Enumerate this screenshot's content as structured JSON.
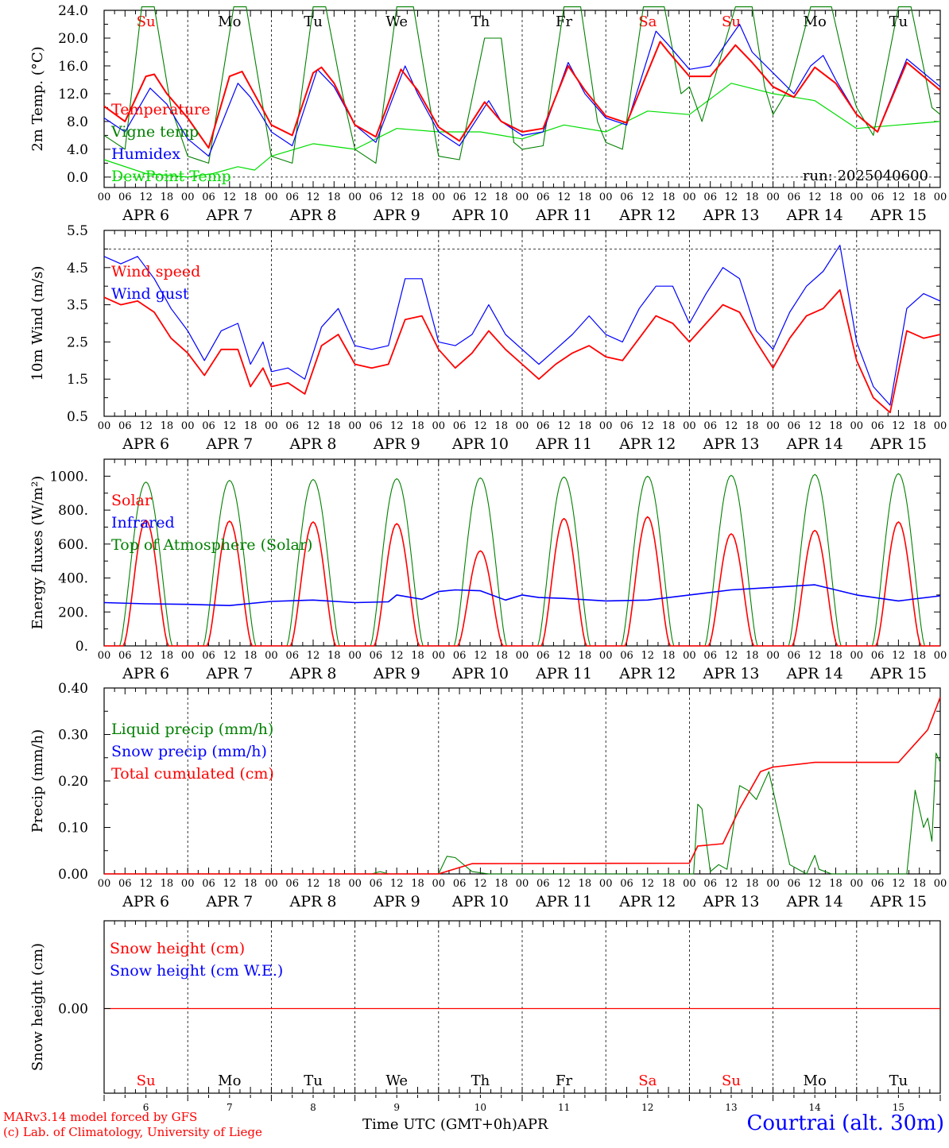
{
  "footer": {
    "model": "MARv3.14 model forced by GFS",
    "credit": "(c) Lab. of Climatology, University of Liege",
    "station": "Courtrai (alt. 30m)",
    "time_axis": "Time UTC (GMT+0h)",
    "month": "APR"
  },
  "colors": {
    "red": "#ff0000",
    "green": "#008000",
    "blue": "#0000ff",
    "lightgreen": "#00dd00",
    "black": "#000000"
  },
  "axis": {
    "hour_ticks": [
      "00",
      "06",
      "12",
      "18"
    ],
    "last_hour": "00",
    "date_labels": [
      "APR  6",
      "APR  7",
      "APR  8",
      "APR  9",
      "APR 10",
      "APR 11",
      "APR 12",
      "APR 13",
      "APR 14",
      "APR 15"
    ]
  },
  "weekdays": [
    {
      "label": "Su",
      "weekend": true
    },
    {
      "label": "Mo",
      "weekend": false
    },
    {
      "label": "Tu",
      "weekend": false
    },
    {
      "label": "We",
      "weekend": false
    },
    {
      "label": "Th",
      "weekend": false
    },
    {
      "label": "Fr",
      "weekend": false
    },
    {
      "label": "Sa",
      "weekend": true
    },
    {
      "label": "Su",
      "weekend": true
    },
    {
      "label": "Mo",
      "weekend": false
    },
    {
      "label": "Tu",
      "weekend": false
    }
  ],
  "day_numbers": [
    "6",
    "7",
    "8",
    "9",
    "10",
    "11",
    "12",
    "13",
    "14",
    "15"
  ],
  "chart_data": [
    {
      "type": "line",
      "ylabel": "2m Temp. (°C)",
      "ylim": [
        -1.5,
        24.0
      ],
      "yticks": [
        "24.0",
        "20.0",
        "16.0",
        "12.0",
        "8.0",
        "4.0",
        "0.0"
      ],
      "ytick_values": [
        24,
        20,
        16,
        12,
        8,
        4,
        0
      ],
      "dashed_ref": 0,
      "annotation": "run: 2025040600",
      "legend": [
        {
          "label": "Temperature",
          "color": "red"
        },
        {
          "label": "Vigne temp",
          "color": "green"
        },
        {
          "label": "Humidex",
          "color": "blue"
        },
        {
          "label": "DewPoint Temp",
          "color": "lightgreen"
        }
      ],
      "series": [
        {
          "name": "Temperature",
          "color": "red",
          "x": [
            0,
            0.25,
            0.5,
            0.6,
            0.75,
            1,
            1.25,
            1.5,
            1.65,
            1.75,
            2,
            2.25,
            2.5,
            2.6,
            2.75,
            3,
            3.25,
            3.55,
            3.75,
            4,
            4.25,
            4.55,
            4.75,
            5,
            5.25,
            5.55,
            5.75,
            6,
            6.25,
            6.65,
            6.75,
            7,
            7.25,
            7.55,
            7.75,
            8,
            8.25,
            8.5,
            8.75,
            9,
            9.25,
            9.6,
            10
          ],
          "values": [
            10.2,
            8,
            14.5,
            14.8,
            12,
            8.5,
            4.2,
            14.5,
            15.2,
            13,
            7.5,
            6,
            15,
            15.8,
            13.5,
            7.5,
            5.8,
            15.5,
            12.5,
            7.2,
            5.2,
            10.8,
            8,
            6.5,
            7,
            16,
            12.5,
            8.8,
            7.8,
            19.5,
            18,
            14.5,
            14.5,
            19,
            16.5,
            13,
            11.5,
            15.8,
            13.5,
            9,
            6.5,
            16.5,
            12.5
          ]
        },
        {
          "name": "Vigne temp",
          "color": "green",
          "x": [
            0,
            0.25,
            0.45,
            0.6,
            0.8,
            1,
            1.25,
            1.55,
            1.7,
            1.9,
            2,
            2.25,
            2.5,
            2.65,
            2.85,
            3,
            3.25,
            3.5,
            3.7,
            3.9,
            4,
            4.25,
            4.55,
            4.75,
            4.9,
            5,
            5.25,
            5.5,
            5.7,
            5.9,
            6,
            6.2,
            6.45,
            6.7,
            6.9,
            7,
            7.15,
            7.55,
            7.75,
            7.9,
            8,
            8.2,
            8.45,
            8.7,
            8.9,
            9,
            9.2,
            9.5,
            9.65,
            9.9,
            10
          ],
          "values": [
            6,
            4,
            24.5,
            24.5,
            10,
            3,
            2,
            24.5,
            24.5,
            10,
            3,
            2,
            24.5,
            24.5,
            12,
            4,
            2,
            24.5,
            24.5,
            10,
            3,
            2.5,
            20,
            20,
            5,
            4,
            4.5,
            24.5,
            24.5,
            8,
            5,
            4,
            24.5,
            24.5,
            12,
            13,
            8,
            24.5,
            24.5,
            13,
            9,
            13,
            24.5,
            24.5,
            14,
            10,
            6,
            24.5,
            24.5,
            10,
            9
          ]
        },
        {
          "name": "Humidex",
          "color": "blue",
          "x": [
            0,
            0.25,
            0.55,
            0.75,
            1,
            1.25,
            1.6,
            1.75,
            2,
            2.25,
            2.55,
            2.75,
            3,
            3.25,
            3.6,
            3.75,
            4,
            4.25,
            4.6,
            4.75,
            5,
            5.25,
            5.55,
            5.75,
            6,
            6.25,
            6.6,
            6.75,
            7,
            7.25,
            7.6,
            7.75,
            8,
            8.25,
            8.45,
            8.6,
            8.75,
            9,
            9.25,
            9.6,
            10
          ],
          "values": [
            8.5,
            6.5,
            12.8,
            10.5,
            5.5,
            3,
            13.5,
            11.5,
            6.5,
            4.5,
            15.5,
            13,
            7.5,
            5,
            16,
            12,
            6.5,
            4.5,
            11,
            8,
            6,
            6.5,
            16.5,
            12,
            8.5,
            7.5,
            21,
            19,
            15.5,
            16,
            22,
            18,
            15,
            12,
            16,
            17.5,
            14,
            9,
            6.5,
            17,
            13
          ]
        },
        {
          "name": "DewPoint Temp",
          "color": "lightgreen",
          "x": [
            0,
            0.5,
            1,
            1.3,
            1.6,
            1.8,
            2,
            2.5,
            3,
            3.5,
            4,
            4.5,
            5,
            5.5,
            6,
            6.5,
            7,
            7.5,
            8,
            8.5,
            9,
            9.5,
            10
          ],
          "values": [
            2.5,
            0.5,
            0,
            0.5,
            1.5,
            1,
            3,
            4.8,
            4,
            7,
            6.5,
            6.5,
            5.5,
            7.5,
            6.5,
            9.5,
            9,
            13.5,
            12,
            11,
            7,
            7.5,
            8
          ]
        }
      ]
    },
    {
      "type": "line",
      "ylabel": "10m Wind (m/s)",
      "ylim": [
        0.5,
        5.5
      ],
      "yticks": [
        "5.5",
        "4.5",
        "3.5",
        "2.5",
        "1.5",
        "0.5"
      ],
      "ytick_values": [
        5.5,
        4.5,
        3.5,
        2.5,
        1.5,
        0.5
      ],
      "dashed_ref": 5.0,
      "legend": [
        {
          "label": "Wind speed",
          "color": "red"
        },
        {
          "label": "Wind gust",
          "color": "blue"
        }
      ],
      "series": [
        {
          "name": "Wind speed",
          "color": "red",
          "x": [
            0,
            0.2,
            0.4,
            0.6,
            0.8,
            1,
            1.2,
            1.4,
            1.6,
            1.75,
            1.9,
            2,
            2.2,
            2.4,
            2.6,
            2.8,
            3,
            3.2,
            3.4,
            3.6,
            3.8,
            4,
            4.2,
            4.4,
            4.6,
            4.8,
            5,
            5.2,
            5.4,
            5.6,
            5.8,
            6,
            6.2,
            6.4,
            6.6,
            6.8,
            7,
            7.2,
            7.4,
            7.6,
            7.8,
            8,
            8.2,
            8.4,
            8.6,
            8.8,
            9,
            9.2,
            9.4,
            9.6,
            9.8,
            10
          ],
          "values": [
            3.7,
            3.5,
            3.6,
            3.3,
            2.6,
            2.2,
            1.6,
            2.3,
            2.3,
            1.3,
            1.8,
            1.3,
            1.4,
            1.1,
            2.4,
            2.7,
            1.9,
            1.8,
            1.9,
            3.1,
            3.2,
            2.3,
            1.8,
            2.2,
            2.8,
            2.3,
            1.9,
            1.5,
            1.9,
            2.2,
            2.4,
            2.1,
            2.0,
            2.6,
            3.2,
            3.0,
            2.5,
            3.0,
            3.5,
            3.3,
            2.5,
            1.8,
            2.6,
            3.2,
            3.4,
            3.9,
            2.0,
            1.0,
            0.6,
            2.8,
            2.6,
            2.7
          ]
        },
        {
          "name": "Wind gust",
          "color": "blue",
          "x": [
            0,
            0.2,
            0.4,
            0.6,
            0.8,
            1,
            1.2,
            1.4,
            1.6,
            1.75,
            1.9,
            2,
            2.2,
            2.4,
            2.6,
            2.8,
            3,
            3.2,
            3.4,
            3.6,
            3.8,
            4,
            4.2,
            4.4,
            4.6,
            4.8,
            5,
            5.2,
            5.4,
            5.6,
            5.8,
            6,
            6.2,
            6.4,
            6.6,
            6.8,
            7,
            7.2,
            7.4,
            7.6,
            7.8,
            8,
            8.2,
            8.4,
            8.6,
            8.8,
            9,
            9.2,
            9.4,
            9.6,
            9.8,
            10
          ],
          "values": [
            4.8,
            4.6,
            4.8,
            4.2,
            3.4,
            2.8,
            2.0,
            2.8,
            3.0,
            1.9,
            2.5,
            1.7,
            1.8,
            1.5,
            2.9,
            3.4,
            2.4,
            2.3,
            2.4,
            4.2,
            4.2,
            2.5,
            2.4,
            2.7,
            3.5,
            2.7,
            2.3,
            1.9,
            2.3,
            2.7,
            3.2,
            2.7,
            2.5,
            3.4,
            4.0,
            4.0,
            3.0,
            3.8,
            4.5,
            4.2,
            2.8,
            2.3,
            3.3,
            4.0,
            4.4,
            5.1,
            2.5,
            1.3,
            0.8,
            3.4,
            3.8,
            3.6
          ]
        }
      ]
    },
    {
      "type": "line",
      "ylabel": "Energy fluxes (W/m²)",
      "ylim": [
        0,
        1100
      ],
      "yticks": [
        "1000.",
        "800.",
        "600.",
        "400.",
        "200.",
        "0."
      ],
      "ytick_values": [
        1000,
        800,
        600,
        400,
        200,
        0
      ],
      "legend": [
        {
          "label": "Solar",
          "color": "red"
        },
        {
          "label": "Infrared",
          "color": "blue"
        },
        {
          "label": "Top of Atmosphere (Solar)",
          "color": "green"
        }
      ],
      "daily_toa_peak": [
        965,
        975,
        980,
        985,
        990,
        995,
        1000,
        1005,
        1010,
        1015
      ],
      "daily_solar_peak": [
        740,
        735,
        730,
        720,
        560,
        750,
        760,
        660,
        680,
        730
      ],
      "series": [
        {
          "name": "Infrared",
          "color": "blue",
          "x": [
            0,
            0.5,
            1,
            1.5,
            2,
            2.5,
            3,
            3.4,
            3.5,
            3.8,
            4,
            4.2,
            4.5,
            4.8,
            5,
            5.2,
            5.5,
            6,
            6.5,
            7,
            7.5,
            8,
            8.5,
            9,
            9.5,
            10
          ],
          "values": [
            255,
            248,
            245,
            238,
            262,
            270,
            255,
            260,
            300,
            275,
            320,
            330,
            325,
            270,
            300,
            285,
            280,
            265,
            270,
            300,
            330,
            345,
            360,
            300,
            265,
            295
          ]
        }
      ]
    },
    {
      "type": "line",
      "ylabel": "Precip (mm/h)",
      "ylim": [
        0,
        0.4
      ],
      "yticks": [
        "0.40",
        "0.30",
        "0.20",
        "0.10",
        "0.00"
      ],
      "ytick_values": [
        0.4,
        0.3,
        0.2,
        0.1,
        0
      ],
      "legend": [
        {
          "label": "Liquid precip (mm/h)",
          "color": "green"
        },
        {
          "label": "Snow precip (mm/h)",
          "color": "blue"
        },
        {
          "label": "Total cumulated (cm)",
          "color": "red"
        }
      ],
      "series": [
        {
          "name": "Liquid precip (mm/h)",
          "color": "green",
          "x": [
            0,
            3.2,
            3.3,
            3.4,
            4,
            4.1,
            4.2,
            4.4,
            4.6,
            7.05,
            7.1,
            7.15,
            7.25,
            7.35,
            7.45,
            7.6,
            7.7,
            7.8,
            7.95,
            8.1,
            8.2,
            8.4,
            8.45,
            8.5,
            8.55,
            8.7,
            9.6,
            9.7,
            9.8,
            9.85,
            9.9,
            9.95,
            10
          ],
          "values": [
            0,
            0,
            0.005,
            0,
            0,
            0.038,
            0.035,
            0.005,
            0,
            0,
            0.15,
            0.14,
            0.005,
            0.02,
            0.01,
            0.19,
            0.18,
            0.16,
            0.22,
            0.1,
            0.02,
            0,
            0.02,
            0.04,
            0.01,
            0,
            0,
            0.18,
            0.1,
            0.12,
            0.07,
            0.26,
            0.24
          ]
        },
        {
          "name": "Total cumulated (cm)",
          "color": "red",
          "x": [
            0,
            3,
            4,
            4.4,
            7,
            7.1,
            7.4,
            7.6,
            7.85,
            8,
            8.5,
            9,
            9.5,
            9.7,
            9.85,
            10
          ],
          "values": [
            0,
            0,
            0,
            0.022,
            0.023,
            0.06,
            0.065,
            0.14,
            0.22,
            0.23,
            0.24,
            0.24,
            0.24,
            0.28,
            0.31,
            0.38
          ]
        }
      ]
    },
    {
      "type": "line",
      "ylabel": "Snow height (cm)",
      "ytick": "0.00",
      "legend": [
        {
          "label": "Snow height (cm)",
          "color": "red"
        },
        {
          "label": "Snow height (cm W.E.)",
          "color": "blue"
        }
      ],
      "series": [
        {
          "name": "Snow height (cm)",
          "color": "red",
          "x": [
            0,
            10
          ],
          "values": [
            0,
            0
          ]
        }
      ]
    }
  ]
}
